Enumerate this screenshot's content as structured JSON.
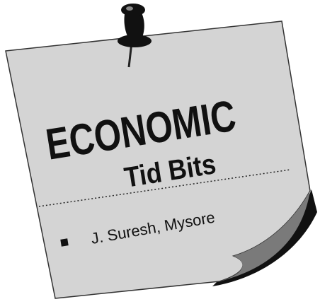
{
  "title": "ECONOMIC",
  "subtitle": "Tid Bits",
  "author": "J. Suresh, Mysore"
}
